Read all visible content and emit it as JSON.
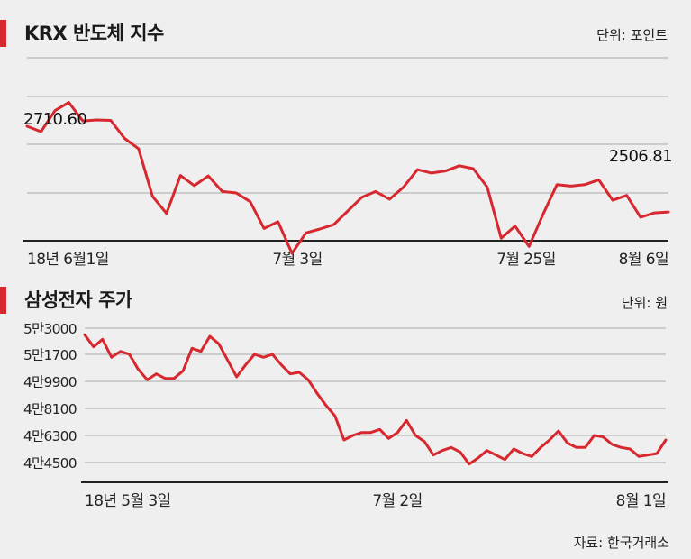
{
  "chart_data": [
    {
      "type": "line",
      "title": "KRX 반도체 지수",
      "unit_label": "단위: 포인트",
      "x_tick_labels": [
        "18년 6월1일",
        "7월 3일",
        "7월 25일",
        "8월 6일"
      ],
      "value_labels": [
        "2710.60",
        "2506.81"
      ],
      "grid": true,
      "color": "#d7282f",
      "series": [
        {
          "values": [
            2711,
            2700,
            2743,
            2760,
            2722,
            2724,
            2723,
            2686,
            2665,
            2567,
            2532,
            2610,
            2589,
            2609,
            2577,
            2574,
            2556,
            2501,
            2515,
            2450,
            2492,
            2500,
            2509,
            2537,
            2565,
            2577,
            2561,
            2586,
            2622,
            2615,
            2619,
            2630,
            2624,
            2586,
            2481,
            2506,
            2464,
            2530,
            2591,
            2588,
            2591,
            2601,
            2559,
            2569,
            2524,
            2533,
            2535
          ]
        }
      ]
    },
    {
      "type": "line",
      "title": "삼성전자 주가",
      "unit_label": "단위: 원",
      "x_tick_labels": [
        "18년 5월 3일",
        "7월 2일",
        "8월 1일"
      ],
      "y_tick_labels": [
        "5만3000",
        "5만1700",
        "4만9900",
        "4만8100",
        "4만6300",
        "4만4500"
      ],
      "grid": true,
      "color": "#d7282f",
      "series": [
        {
          "values": [
            53000,
            52200,
            52700,
            51500,
            51900,
            51700,
            50700,
            50000,
            50400,
            50100,
            50100,
            50600,
            52100,
            51900,
            52900,
            52400,
            51300,
            50200,
            51000,
            51700,
            51500,
            51700,
            51000,
            50400,
            50500,
            50000,
            49100,
            48300,
            47600,
            46000,
            46300,
            46500,
            46500,
            46700,
            46100,
            46500,
            47300,
            46300,
            45900,
            45000,
            45300,
            45500,
            45200,
            44400,
            44800,
            45300,
            45000,
            44700,
            45400,
            45100,
            44900,
            45500,
            46000,
            46600,
            45800,
            45500,
            45500,
            46300,
            46200,
            45700,
            45500,
            45400,
            44900,
            45000,
            45100,
            46000
          ]
        }
      ]
    }
  ],
  "source": "자료: 한국거래소"
}
